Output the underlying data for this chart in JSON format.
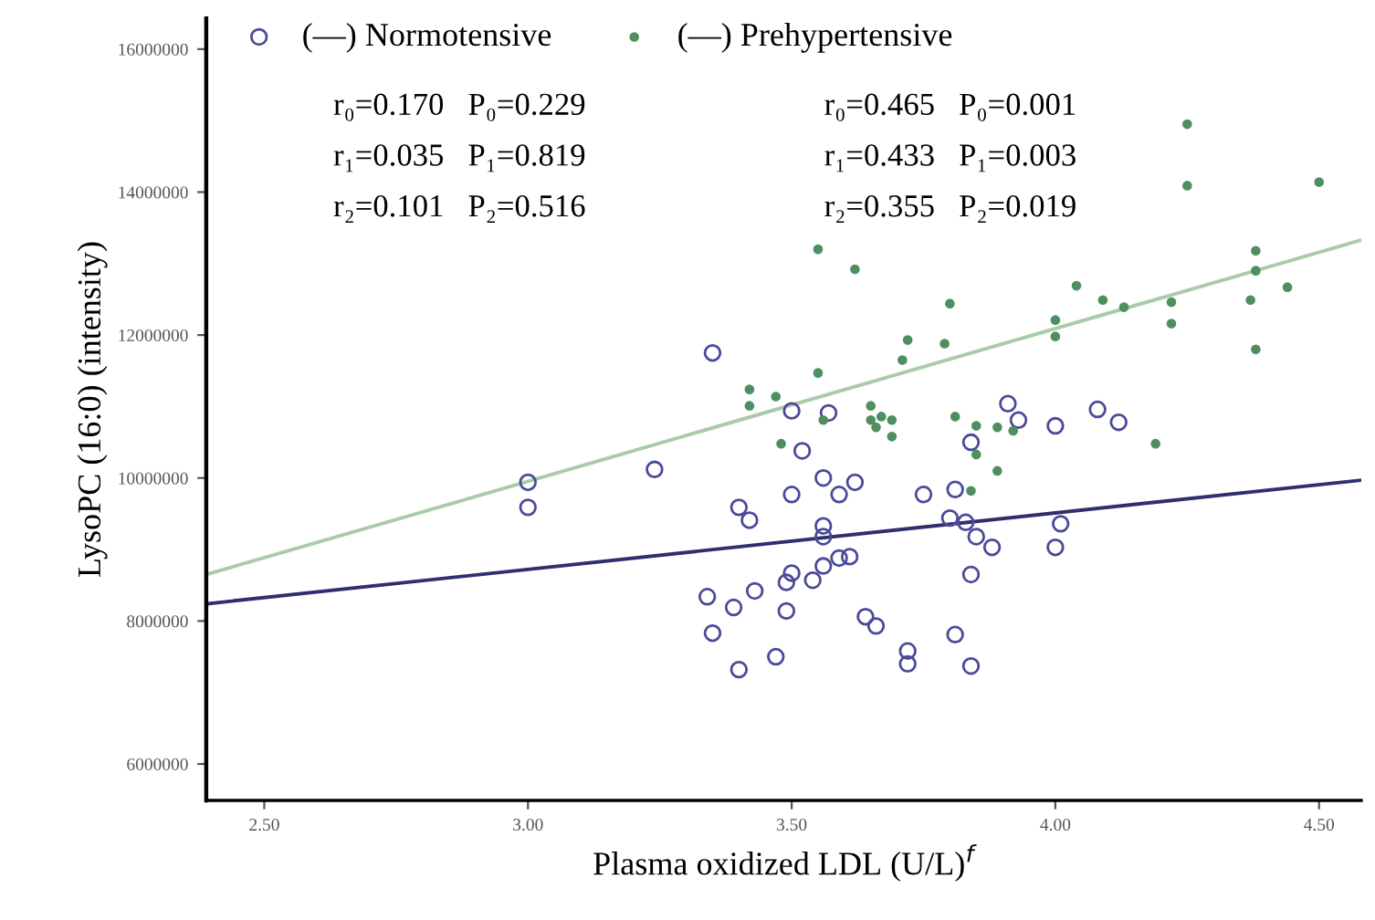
{
  "chart_data": {
    "type": "scatter",
    "xlabel": "Plasma oxidized LDL (U/L)$^{f}$",
    "ylabel": "LysoPC (16:0) (intensity)",
    "xlim": [
      2.39,
      4.58
    ],
    "ylim": [
      5490000,
      16430000
    ],
    "xticks": [
      {
        "value": 2.5,
        "label": "2.50"
      },
      {
        "value": 3.0,
        "label": "3.00"
      },
      {
        "value": 3.5,
        "label": "3.50"
      },
      {
        "value": 4.0,
        "label": "4.00"
      },
      {
        "value": 4.5,
        "label": "4.50"
      }
    ],
    "yticks": [
      6000000,
      8000000,
      10000000,
      12000000,
      14000000,
      16000000
    ],
    "grid": false,
    "legend": "top left",
    "annotations": [
      "r₀=0.170   P₀=0.229",
      "r₁=0.035   P₁=0.819",
      "r₂=0.101   P₂=0.516",
      "r₀=0.465   P₀=0.001",
      "r₁=0.433   P₁=0.003",
      "r₂=0.355   P₂=0.019"
    ],
    "series": [
      {
        "name": "(—) Normotensive",
        "type": "scatter",
        "marker": "circle",
        "color": "#4a4a9a",
        "x": [
          3.0,
          3.0,
          3.24,
          3.35,
          3.5,
          3.57,
          3.52,
          3.5,
          3.56,
          3.59,
          3.62,
          3.4,
          3.42,
          3.56,
          3.56,
          3.75,
          3.81,
          3.8,
          3.83,
          3.85,
          3.88,
          3.91,
          3.93,
          3.84,
          3.84,
          3.5,
          3.49,
          3.54,
          3.56,
          3.59,
          3.61,
          3.43,
          3.34,
          3.39,
          3.49,
          3.64,
          3.66,
          3.35,
          3.81,
          3.72,
          3.72,
          3.47,
          3.4,
          3.84,
          4.0,
          4.08,
          4.12,
          4.01,
          4.0
        ],
        "values": [
          9940000,
          9590000,
          10120000,
          11750000,
          10940000,
          10910000,
          10380000,
          9770000,
          10000000,
          9770000,
          9940000,
          9590000,
          9410000,
          9330000,
          9180000,
          9770000,
          9840000,
          9440000,
          9380000,
          9180000,
          9030000,
          11040000,
          10810000,
          10500000,
          8650000,
          8670000,
          8540000,
          8570000,
          8770000,
          8880000,
          8900000,
          8420000,
          8340000,
          8190000,
          8140000,
          8060000,
          7930000,
          7830000,
          7810000,
          7580000,
          7400000,
          7500000,
          7320000,
          7370000,
          10730000,
          10960000,
          10780000,
          9360000,
          9030000
        ]
      },
      {
        "name": "(—) Prehypertensive",
        "type": "scatter",
        "marker": "circle",
        "color": "#4f8f5f",
        "x": [
          3.8,
          3.72,
          3.79,
          3.71,
          3.55,
          3.42,
          3.47,
          3.42,
          3.56,
          3.65,
          3.65,
          3.67,
          3.69,
          3.66,
          3.69,
          3.48,
          3.81,
          3.85,
          3.89,
          3.92,
          3.89,
          3.84,
          3.85,
          3.55,
          3.62,
          4.25,
          4.25,
          4.5,
          4.04,
          4.09,
          4.13,
          4.0,
          4.0,
          4.22,
          4.22,
          4.38,
          4.38,
          4.37,
          4.44,
          4.38,
          4.19
        ],
        "values": [
          12440000,
          11930000,
          11880000,
          11650000,
          11470000,
          11240000,
          11140000,
          11010000,
          10810000,
          11010000,
          10810000,
          10860000,
          10810000,
          10710000,
          10580000,
          10480000,
          10860000,
          10730000,
          10710000,
          10660000,
          10100000,
          9820000,
          10330000,
          13200000,
          12920000,
          14950000,
          14090000,
          14140000,
          12690000,
          12490000,
          12390000,
          12210000,
          11980000,
          12460000,
          12160000,
          13180000,
          12900000,
          12490000,
          12670000,
          11800000,
          10480000
        ]
      },
      {
        "type": "line",
        "color": "#2f2f6f",
        "line_style": "solid",
        "x": [
          2.39,
          4.58
        ],
        "values": [
          8240000,
          9970000
        ]
      },
      {
        "type": "line",
        "color": "#a8cca8",
        "line_style": "solid",
        "x": [
          2.39,
          4.58
        ],
        "values": [
          8650000,
          13330000
        ]
      }
    ]
  }
}
